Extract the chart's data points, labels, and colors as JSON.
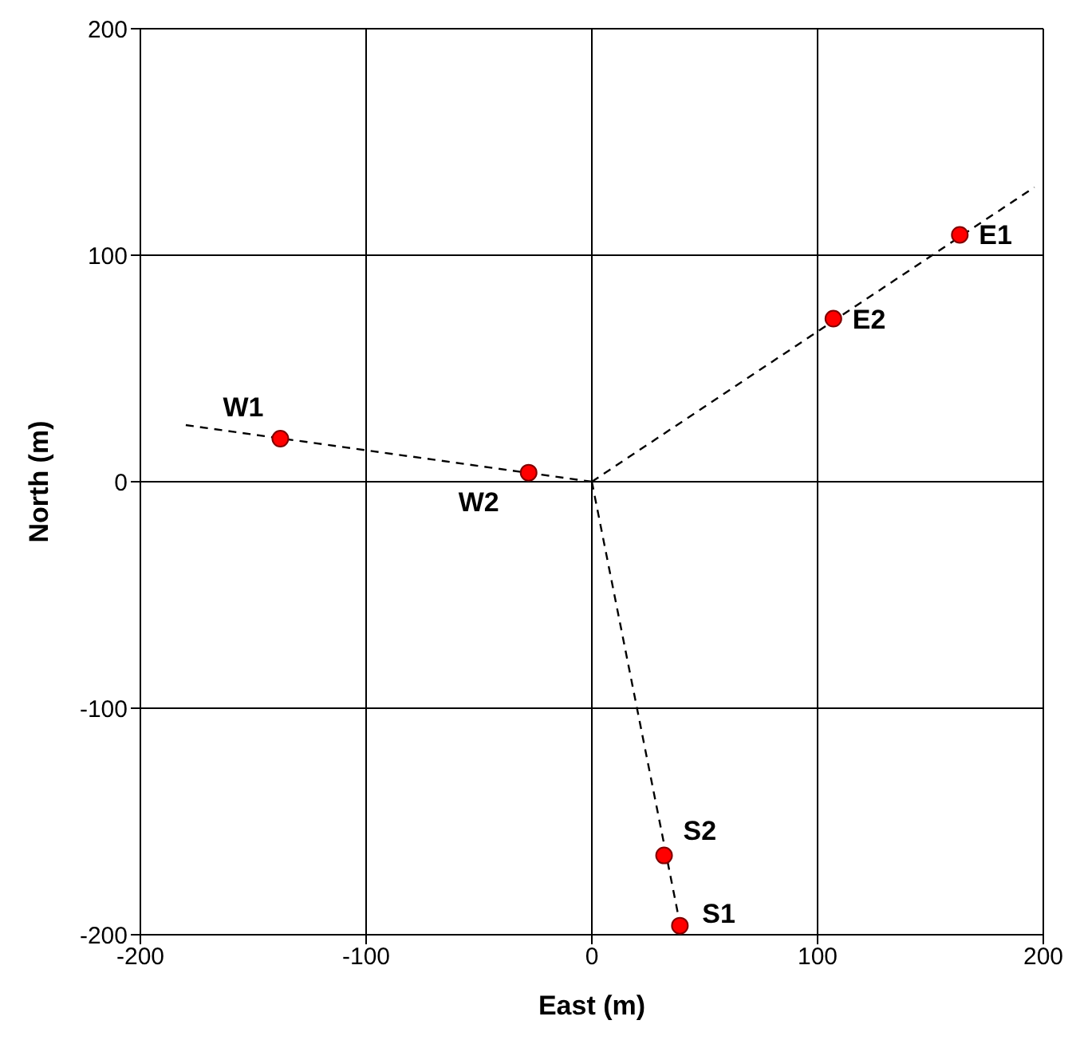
{
  "chart_data": {
    "type": "scatter",
    "xlabel": "East (m)",
    "ylabel": "North (m)",
    "xlim": [
      -200,
      200
    ],
    "ylim": [
      -200,
      200
    ],
    "xticks": [
      -200,
      -100,
      0,
      100,
      200
    ],
    "yticks": [
      -200,
      -100,
      0,
      100,
      200
    ],
    "grid": true,
    "legend": false,
    "series": [
      {
        "type": "scatter",
        "color": "#ff0000",
        "marker": "circle",
        "x": [
          163,
          107,
          -138,
          -28,
          32,
          39
        ],
        "values": [
          109,
          72,
          19,
          4,
          -165,
          -196
        ]
      },
      {
        "type": "line",
        "color": "#000000",
        "line_style": "dashed",
        "marker": "none",
        "x": [
          0,
          196
        ],
        "values": [
          0,
          130
        ]
      },
      {
        "type": "line",
        "color": "#000000",
        "line_style": "dashed",
        "marker": "none",
        "x": [
          0,
          -180
        ],
        "values": [
          0,
          25
        ]
      },
      {
        "type": "line",
        "color": "#000000",
        "line_style": "dashed",
        "marker": "none",
        "x": [
          0,
          40
        ],
        "values": [
          0,
          -200
        ]
      }
    ],
    "annotations": [
      {
        "text": "E1",
        "x": 163,
        "y": 109
      },
      {
        "text": "E2",
        "x": 107,
        "y": 72
      },
      {
        "text": "W1",
        "x": -138,
        "y": 19
      },
      {
        "text": "W2",
        "x": -28,
        "y": 4
      },
      {
        "text": "S2",
        "x": 32,
        "y": -165
      },
      {
        "text": "S1",
        "x": 39,
        "y": -196
      }
    ]
  }
}
